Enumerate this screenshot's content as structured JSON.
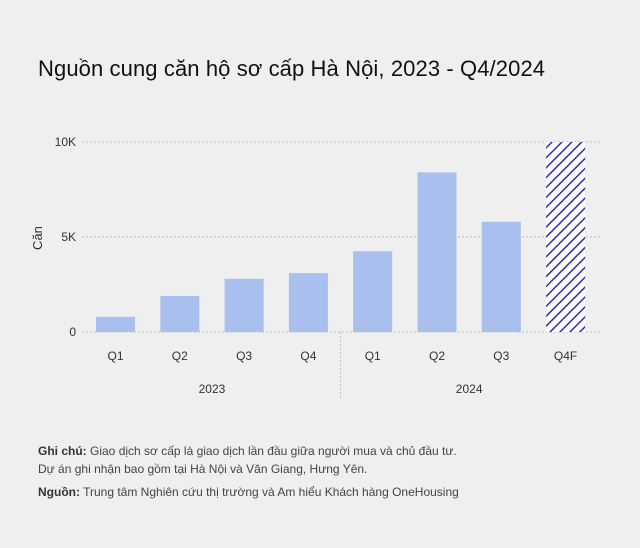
{
  "chart_data": {
    "type": "bar",
    "title": "Nguồn cung căn hộ sơ cấp Hà Nội, 2023 - Q4/2024",
    "ylabel": "Căn",
    "xlabel": "",
    "ylim": [
      0,
      10000
    ],
    "y_ticks": [
      {
        "value": 0,
        "label": "0"
      },
      {
        "value": 5000,
        "label": "5K"
      },
      {
        "value": 10000,
        "label": "10K"
      }
    ],
    "categories": [
      "Q1",
      "Q2",
      "Q3",
      "Q4",
      "Q1",
      "Q2",
      "Q3",
      "Q4F"
    ],
    "values": [
      800,
      1900,
      2800,
      3100,
      4250,
      8400,
      5800,
      10000
    ],
    "forecast": [
      false,
      false,
      false,
      false,
      false,
      false,
      false,
      true
    ],
    "year_groups": [
      {
        "label": "2023",
        "start": 0,
        "end": 3
      },
      {
        "label": "2024",
        "start": 4,
        "end": 7
      }
    ],
    "grid": true,
    "colors": {
      "bar": "#a9bfee",
      "forecast_hatch": "#2b2bb8",
      "grid": "#bdbdbd"
    }
  },
  "notes": {
    "note_label": "Ghi chú:",
    "note_text": " Giao dịch sơ cấp là giao dịch lần đầu giữa người mua và chủ đầu tư.",
    "note_line2": "Dự án ghi nhận bao gồm tại Hà Nội và Văn Giang, Hưng Yên.",
    "source_label": "Nguồn:",
    "source_text": " Trung tâm Nghiên cứu thị trường và Am hiểu Khách hàng OneHousing"
  }
}
